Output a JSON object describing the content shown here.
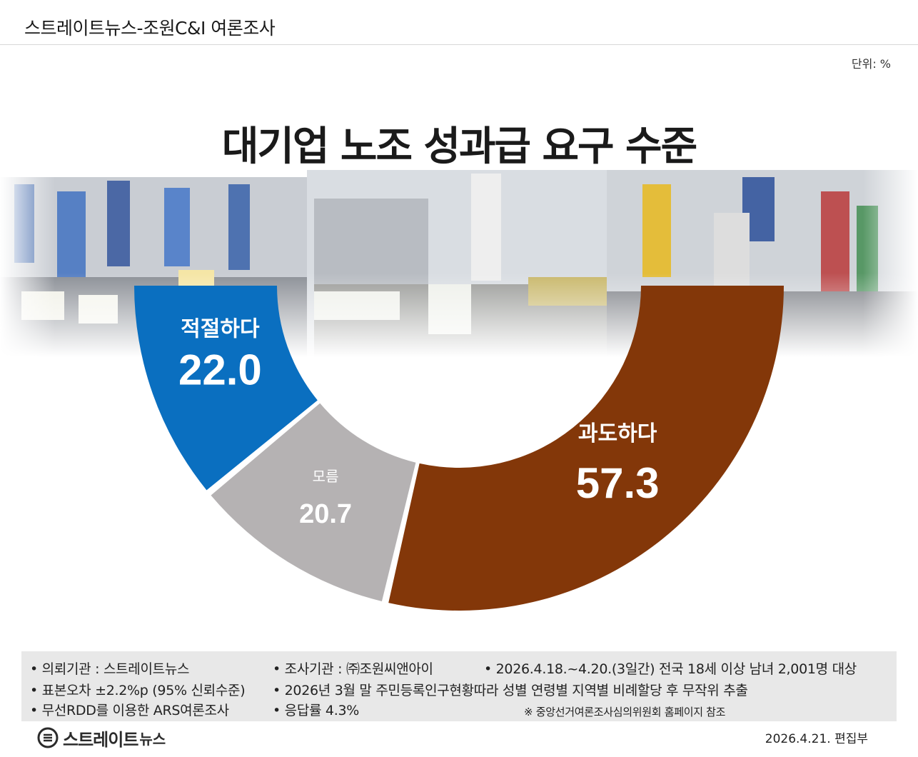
{
  "header": {
    "title": "스트레이트뉴스-조원C&I 여론조사"
  },
  "unit_label": "단위: %",
  "chart_data": {
    "type": "pie",
    "title": "대기업 노조 성과급 요구 수준",
    "slices": [
      {
        "label": "적절하다",
        "value": 22.0,
        "value_text": "22.0",
        "color": "#0a6fc0"
      },
      {
        "label": "모름",
        "value": 20.7,
        "value_text": "20.7",
        "color": "#b5b2b3"
      },
      {
        "label": "과도하다",
        "value": 57.3,
        "value_text": "57.3",
        "color": "#833709"
      }
    ],
    "legend": "none"
  },
  "footer": {
    "notes": [
      "• 의뢰기관 : 스트레이트뉴스",
      "• 조사기관 : ㈜조원씨앤아이",
      "• 2026.4.18.~4.20.(3일간) 전국 18세 이상 남녀 2,001명 대상",
      "• 표본오차 ±2.2%p (95% 신뢰수준)",
      "• 2026년 3월 말 주민등록인구현황따라 성별 연령별 지역별 비례할당 후 무작위 추출",
      "• 무선RDD를 이용한 ARS여론조사",
      "• 응답률 4.3%"
    ],
    "reference": "※ 중앙선거여론조사심의위원회 홈페이지 참조",
    "logo_text": "스트레이트",
    "logo_sub": "뉴스",
    "date_credit": "2026.4.21.  편집부"
  }
}
